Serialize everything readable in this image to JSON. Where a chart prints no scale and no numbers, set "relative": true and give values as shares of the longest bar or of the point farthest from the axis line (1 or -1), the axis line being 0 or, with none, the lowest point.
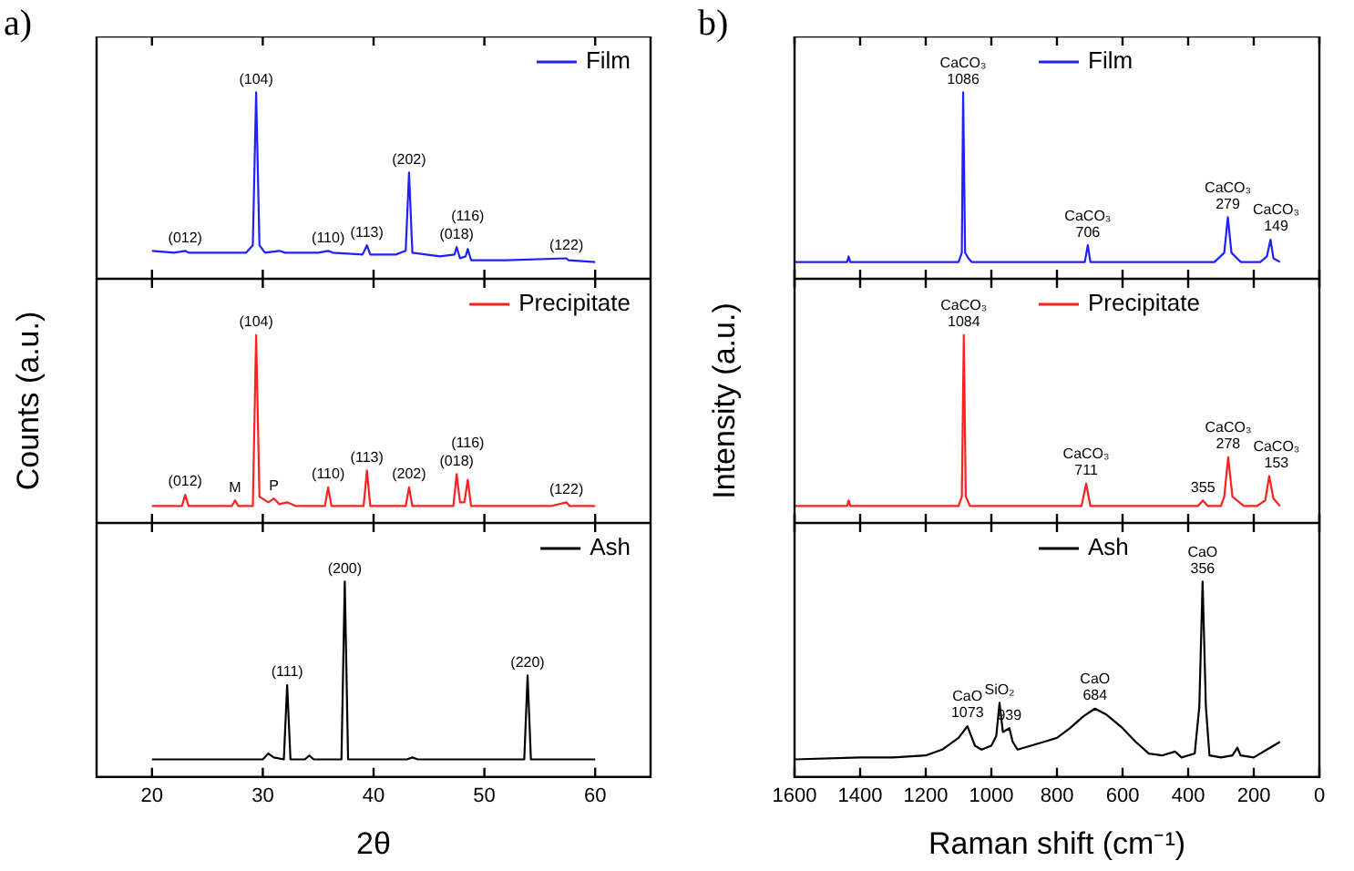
{
  "chart_data": [
    {
      "type": "line",
      "title": "a)",
      "relative": true,
      "marker": "none",
      "legend": "top right",
      "tick_labels": false,
      "xlim": [
        15,
        65
      ],
      "xticks": [
        20,
        30,
        40,
        50,
        60
      ],
      "x": [
        20,
        22,
        23,
        23.3,
        26,
        28.5,
        29.1,
        29.4,
        29.7,
        30.2,
        31.5,
        32,
        35,
        35.9,
        36.3,
        39,
        39.4,
        39.7,
        42,
        42.9,
        43.2,
        43.5,
        46,
        47.3,
        47.5,
        47.8,
        48.3,
        48.5,
        48.8,
        52,
        57.4,
        57.6,
        60
      ],
      "series": [
        {
          "name": "Film",
          "color": "#2020ff",
          "values": [
            0.15,
            0.14,
            0.15,
            0.14,
            0.14,
            0.14,
            0.18,
            1,
            0.18,
            0.14,
            0.15,
            0.14,
            0.14,
            0.15,
            0.14,
            0.13,
            0.18,
            0.13,
            0.13,
            0.15,
            0.57,
            0.14,
            0.12,
            0.13,
            0.17,
            0.11,
            0.12,
            0.16,
            0.1,
            0.1,
            0.11,
            0.1,
            0.09
          ]
        }
      ],
      "annotations": [
        {
          "text": "(012)",
          "x": 23,
          "y": 0.15
        },
        {
          "text": "(104)",
          "x": 29.4,
          "y": 1
        },
        {
          "text": "(110)",
          "x": 35.9,
          "y": 0.15
        },
        {
          "text": "(113)",
          "x": 39.4,
          "y": 0.18
        },
        {
          "text": "(202)",
          "x": 43.2,
          "y": 0.57
        },
        {
          "text": "(018)",
          "x": 47.5,
          "y": 0.17
        },
        {
          "text": "(116)",
          "x": 48.5,
          "y": 0.16
        },
        {
          "text": "(122)",
          "x": 57.4,
          "y": 0.11
        }
      ]
    },
    {
      "type": "line",
      "ylabel": "Counts (a.u.)",
      "relative": true,
      "marker": "none",
      "legend": "top right",
      "tick_labels": false,
      "xlim": [
        15,
        65
      ],
      "xticks": [
        20,
        30,
        40,
        50,
        60
      ],
      "x": [
        20,
        22.7,
        23,
        23.3,
        26,
        27.2,
        27.5,
        27.8,
        29.1,
        29.4,
        29.7,
        30.5,
        31,
        31.5,
        32.2,
        33,
        35.6,
        35.9,
        36.2,
        39.1,
        39.4,
        39.7,
        42.9,
        43.2,
        43.5,
        47.2,
        47.5,
        47.8,
        48.2,
        48.5,
        48.8,
        56,
        57.4,
        57.7,
        60
      ],
      "series": [
        {
          "name": "Precipitate",
          "color": "#ff2020",
          "values": [
            0.09,
            0.09,
            0.15,
            0.09,
            0.09,
            0.09,
            0.12,
            0.09,
            0.09,
            1,
            0.14,
            0.11,
            0.13,
            0.1,
            0.11,
            0.09,
            0.09,
            0.19,
            0.09,
            0.09,
            0.28,
            0.09,
            0.09,
            0.19,
            0.09,
            0.09,
            0.26,
            0.11,
            0.11,
            0.23,
            0.09,
            0.09,
            0.11,
            0.09,
            0.09
          ]
        }
      ],
      "annotations": [
        {
          "text": "(012)",
          "x": 23,
          "y": 0.15
        },
        {
          "text": "M",
          "x": 27.5,
          "y": 0.12
        },
        {
          "text": "(104)",
          "x": 29.4,
          "y": 1
        },
        {
          "text": "P",
          "x": 31,
          "y": 0.13
        },
        {
          "text": "(110)",
          "x": 35.9,
          "y": 0.19
        },
        {
          "text": "(113)",
          "x": 39.4,
          "y": 0.28
        },
        {
          "text": "(202)",
          "x": 43.2,
          "y": 0.19
        },
        {
          "text": "(018)",
          "x": 47.5,
          "y": 0.26
        },
        {
          "text": "(116)",
          "x": 48.5,
          "y": 0.23
        },
        {
          "text": "(122)",
          "x": 57.4,
          "y": 0.11
        }
      ]
    },
    {
      "type": "line",
      "xlabel": "2θ",
      "relative": true,
      "marker": "none",
      "legend": "top right",
      "tick_labels": "x",
      "xlim": [
        15,
        65
      ],
      "xticks": [
        20,
        30,
        40,
        50,
        60
      ],
      "x": [
        20,
        30,
        30.5,
        31,
        31.9,
        32.2,
        32.5,
        33.8,
        34.2,
        34.6,
        37.1,
        37.4,
        37.7,
        43,
        43.5,
        44,
        53.6,
        53.9,
        54.2,
        60
      ],
      "series": [
        {
          "name": "Ash",
          "color": "#000000",
          "values": [
            0.09,
            0.09,
            0.12,
            0.1,
            0.09,
            0.47,
            0.09,
            0.09,
            0.11,
            0.09,
            0.09,
            1,
            0.09,
            0.09,
            0.1,
            0.09,
            0.09,
            0.52,
            0.09,
            0.09
          ]
        }
      ],
      "annotations": [
        {
          "text": "(111)",
          "x": 32.2,
          "y": 0.47
        },
        {
          "text": "(200)",
          "x": 37.4,
          "y": 1
        },
        {
          "text": "(220)",
          "x": 53.9,
          "y": 0.52
        }
      ]
    },
    {
      "type": "line",
      "title": "b)",
      "relative": true,
      "marker": "none",
      "legend": "top",
      "tick_labels": false,
      "xlim": [
        1600,
        0
      ],
      "xticks": [
        1600,
        1400,
        1200,
        1000,
        800,
        600,
        400,
        200,
        0
      ],
      "x": [
        1600,
        1440,
        1435,
        1430,
        1100,
        1090,
        1086,
        1080,
        1070,
        1060,
        715,
        706,
        698,
        320,
        290,
        279,
        268,
        240,
        180,
        160,
        149,
        140,
        120
      ],
      "series": [
        {
          "name": "Film",
          "color": "#2020ff",
          "values": [
            0.09,
            0.09,
            0.12,
            0.09,
            0.09,
            0.14,
            1,
            0.14,
            0.11,
            0.09,
            0.09,
            0.18,
            0.09,
            0.09,
            0.14,
            0.33,
            0.14,
            0.09,
            0.09,
            0.12,
            0.21,
            0.11,
            0.09
          ]
        }
      ],
      "annotations": [
        {
          "text": "CaCO₃\n1086",
          "x": 1086,
          "y": 1
        },
        {
          "text": "CaCO₃\n706",
          "x": 706,
          "y": 0.18
        },
        {
          "text": "CaCO₃\n279",
          "x": 279,
          "y": 0.33
        },
        {
          "text": "CaCO₃\n149",
          "x": 149,
          "y": 0.21
        }
      ]
    },
    {
      "type": "line",
      "ylabel": "Intensity (a.u.)",
      "relative": true,
      "marker": "none",
      "legend": "top",
      "tick_labels": false,
      "xlim": [
        1600,
        0
      ],
      "xticks": [
        1600,
        1400,
        1200,
        1000,
        800,
        600,
        400,
        200,
        0
      ],
      "x": [
        1600,
        1440,
        1435,
        1430,
        1100,
        1090,
        1084,
        1078,
        1065,
        725,
        711,
        698,
        400,
        370,
        355,
        340,
        300,
        290,
        278,
        265,
        230,
        190,
        165,
        153,
        140,
        120
      ],
      "series": [
        {
          "name": "Precipitate",
          "color": "#ff2020",
          "values": [
            0.09,
            0.09,
            0.12,
            0.09,
            0.09,
            0.14,
            1,
            0.14,
            0.09,
            0.09,
            0.21,
            0.09,
            0.09,
            0.09,
            0.12,
            0.09,
            0.09,
            0.14,
            0.35,
            0.14,
            0.09,
            0.09,
            0.12,
            0.25,
            0.13,
            0.09
          ]
        }
      ],
      "annotations": [
        {
          "text": "CaCO₃\n1084",
          "x": 1084,
          "y": 1
        },
        {
          "text": "CaCO₃\n711",
          "x": 711,
          "y": 0.21
        },
        {
          "text": "355",
          "x": 355,
          "y": 0.12
        },
        {
          "text": "CaCO₃\n278",
          "x": 278,
          "y": 0.35
        },
        {
          "text": "CaCO₃\n153",
          "x": 153,
          "y": 0.25
        }
      ]
    },
    {
      "type": "line",
      "xlabel": "Raman shift (cm⁻¹)",
      "relative": true,
      "marker": "none",
      "legend": "top",
      "tick_labels": "x",
      "xlim": [
        1600,
        0
      ],
      "xticks": [
        1600,
        1400,
        1200,
        1000,
        800,
        600,
        400,
        200,
        0
      ],
      "x": [
        1600,
        1400,
        1300,
        1200,
        1150,
        1100,
        1073,
        1050,
        1030,
        1000,
        985,
        975,
        965,
        945,
        935,
        920,
        880,
        840,
        800,
        760,
        720,
        684,
        650,
        600,
        560,
        520,
        480,
        440,
        420,
        380,
        366,
        356,
        346,
        335,
        300,
        265,
        250,
        240,
        200,
        160,
        120
      ],
      "series": [
        {
          "name": "Ash",
          "color": "#000000",
          "values": [
            0.09,
            0.1,
            0.1,
            0.11,
            0.14,
            0.2,
            0.26,
            0.16,
            0.14,
            0.16,
            0.21,
            0.38,
            0.23,
            0.25,
            0.18,
            0.14,
            0.16,
            0.18,
            0.2,
            0.25,
            0.31,
            0.35,
            0.32,
            0.25,
            0.18,
            0.12,
            0.11,
            0.13,
            0.1,
            0.12,
            0.36,
            1,
            0.36,
            0.11,
            0.1,
            0.11,
            0.15,
            0.11,
            0.1,
            0.14,
            0.18
          ]
        }
      ],
      "annotations": [
        {
          "text": "CaO\n1073",
          "x": 1073,
          "y": 0.26
        },
        {
          "text": "SiO₂",
          "x": 975,
          "y": 0.38
        },
        {
          "text": "939",
          "x": 945,
          "y": 0.25
        },
        {
          "text": "CaO\n684",
          "x": 684,
          "y": 0.35
        },
        {
          "text": "CaO\n356",
          "x": 356,
          "y": 1
        }
      ]
    }
  ]
}
